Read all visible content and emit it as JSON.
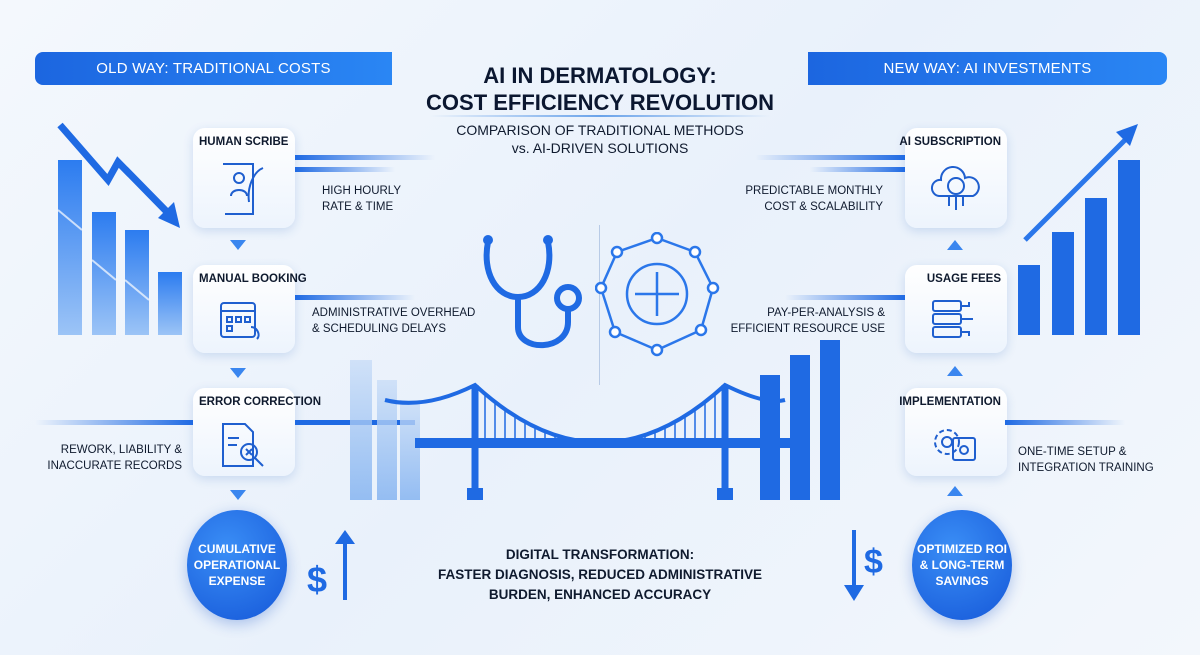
{
  "header": {
    "title_line1": "AI IN DERMATOLOGY:",
    "title_line2": "COST EFFICIENCY REVOLUTION",
    "subtitle_line1": "COMPARISON OF TRADITIONAL METHODS",
    "subtitle_line2": "vs. AI-DRIVEN SOLUTIONS",
    "old_way": "OLD WAY: TRADITIONAL COSTS",
    "new_way": "NEW WAY: AI INVESTMENTS"
  },
  "old_way": {
    "steps": [
      {
        "title": "HUMAN SCRIBE",
        "icon": "scribe-scroll-quill-icon",
        "desc1": "HIGH HOURLY",
        "desc2": "RATE & TIME"
      },
      {
        "title": "MANUAL BOOKING",
        "icon": "calendar-phone-icon",
        "desc1": "ADMINISTRATIVE OVERHEAD",
        "desc2": "& SCHEDULING DELAYS"
      },
      {
        "title": "ERROR CORRECTION",
        "icon": "document-magnifier-error-icon",
        "desc1": "REWORK, LIABILITY &",
        "desc2": "INACCURATE RECORDS"
      }
    ],
    "result": "CUMULATIVE OPERATIONAL EXPENSE",
    "trend_icon": "dollar-up-arrow-icon"
  },
  "new_way": {
    "steps": [
      {
        "title": "AI SUBSCRIPTION",
        "icon": "cloud-brain-icon",
        "desc1": "PREDICTABLE MONTHLY",
        "desc2": "COST & SCALABILITY"
      },
      {
        "title": "USAGE FEES",
        "icon": "server-circuit-icon",
        "desc1": "PAY-PER-ANALYSIS &",
        "desc2": "EFFICIENT RESOURCE USE"
      },
      {
        "title": "IMPLEMENTATION",
        "icon": "gear-window-icon",
        "desc1": "ONE-TIME SETUP &",
        "desc2": "INTEGRATION TRAINING"
      }
    ],
    "result": "OPTIMIZED ROI & LONG-TERM SAVINGS",
    "trend_icon": "dollar-down-arrow-icon"
  },
  "center": {
    "line1": "DIGITAL TRANSFORMATION:",
    "line2": "FASTER DIAGNOSIS, REDUCED ADMINISTRATIVE",
    "line3": "BURDEN, ENHANCED ACCURACY"
  },
  "colors": {
    "accent": "#1f6ae3",
    "dark": "#0f1a2e",
    "background": "#eef4fb"
  }
}
